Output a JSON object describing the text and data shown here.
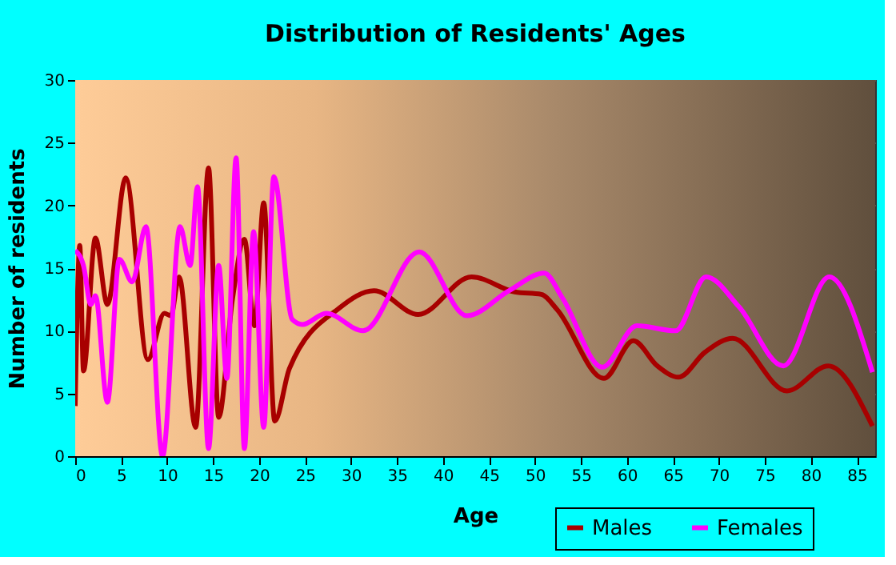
{
  "chart_data": {
    "type": "line",
    "title": "Distribution of Residents' Ages",
    "xlabel": "Age",
    "ylabel": "Number of residents",
    "xlim": [
      0,
      87
    ],
    "xticks": [
      0,
      5,
      10,
      15,
      20,
      25,
      30,
      35,
      40,
      45,
      50,
      55,
      60,
      65,
      70,
      75,
      80,
      85
    ],
    "ylim": [
      0,
      30
    ],
    "yticks": [
      0,
      5,
      10,
      15,
      20,
      25,
      30
    ],
    "grid": true,
    "legend": "bottom right",
    "line_style": "solid",
    "marker": "none",
    "series": [
      {
        "name": "Males",
        "color": "#a80000",
        "x": [
          0,
          0.5,
          0.9,
          2.2,
          3.5,
          5.5,
          7.9,
          9.7,
          10.4,
          11.3,
          13.1,
          14.5,
          15.6,
          17.1,
          18.4,
          19.5,
          20.5,
          21.7,
          23.3,
          28.7,
          32.5,
          37.3,
          43.1,
          47.8,
          50.7,
          52.4,
          57.5,
          60.7,
          63.3,
          65.6,
          68.5,
          71.5,
          77.4,
          81.9,
          86.7
        ],
        "values": [
          4.0,
          16.8,
          6.8,
          17.4,
          12.1,
          22.2,
          7.7,
          11.4,
          11.2,
          14.3,
          2.3,
          23.0,
          3.1,
          12.5,
          17.3,
          10.4,
          20.2,
          2.8,
          7.0,
          11.8,
          13.2,
          11.3,
          14.3,
          13.1,
          12.9,
          11.7,
          6.2,
          9.2,
          7.2,
          6.3,
          8.3,
          9.4,
          5.2,
          7.2,
          2.4
        ]
      },
      {
        "name": "Females",
        "color": "#ff00ff",
        "x": [
          0,
          0.9,
          1.7,
          2.2,
          3.5,
          4.8,
          6.2,
          7.7,
          9.5,
          11.4,
          12.5,
          13.3,
          14.5,
          15.6,
          16.5,
          17.5,
          18.4,
          19.4,
          20.5,
          21.6,
          23.6,
          24.7,
          27.3,
          31.3,
          37.4,
          42.6,
          47.2,
          51.0,
          53.0,
          57.3,
          61.1,
          65.3,
          68.6,
          72.2,
          77.0,
          82.0,
          86.7
        ],
        "values": [
          16.4,
          15.2,
          12.1,
          12.8,
          4.3,
          15.7,
          13.9,
          18.3,
          0,
          18.3,
          15.2,
          21.5,
          0.6,
          15.2,
          6.2,
          23.8,
          0.6,
          17.9,
          2.3,
          22.3,
          10.9,
          10.5,
          11.4,
          10.0,
          16.3,
          11.2,
          13.2,
          14.6,
          12.6,
          7.1,
          10.4,
          10.0,
          14.3,
          11.9,
          7.2,
          14.3,
          6.7
        ]
      }
    ]
  }
}
